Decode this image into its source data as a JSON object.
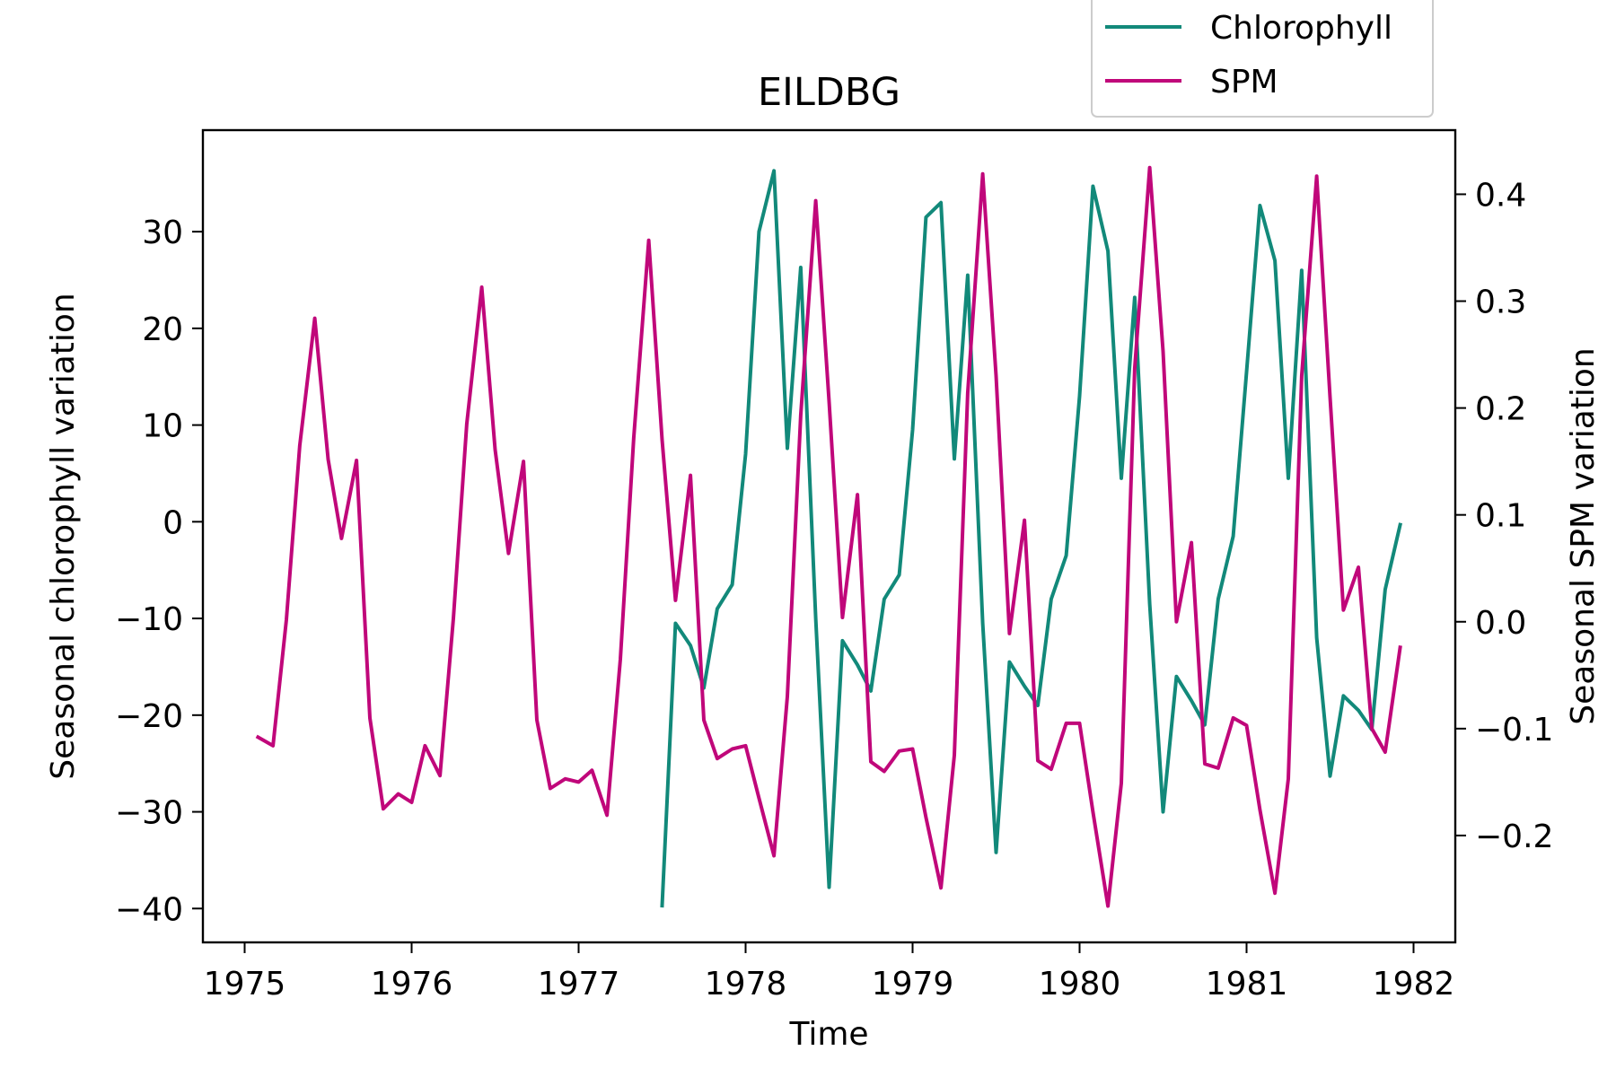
{
  "chart_data": {
    "type": "line",
    "title": "EILDBG",
    "xlabel": "Time",
    "ylabel": "Seasonal chlorophyll variation",
    "y2label": "Seasonal SPM variation",
    "xlim": [
      1974.75,
      1982.25
    ],
    "ylim": [
      -43.5,
      40.5
    ],
    "y2lim": [
      -0.3,
      0.46
    ],
    "x_ticks": [
      1975,
      1976,
      1977,
      1978,
      1979,
      1980,
      1981,
      1982
    ],
    "x_tick_labels": [
      "1975",
      "1976",
      "1977",
      "1978",
      "1979",
      "1980",
      "1981",
      "1982"
    ],
    "y_ticks": [
      -40,
      -30,
      -20,
      -10,
      0,
      10,
      20,
      30
    ],
    "y_tick_labels": [
      "−40",
      "−30",
      "−20",
      "−10",
      "0",
      "10",
      "20",
      "30"
    ],
    "y2_ticks": [
      -0.2,
      -0.1,
      0.0,
      0.1,
      0.2,
      0.3,
      0.4
    ],
    "y2_tick_labels": [
      "−0.2",
      "−0.1",
      "0.0",
      "0.1",
      "0.2",
      "0.3",
      "0.4"
    ],
    "grid": false,
    "legend_position": "top-right",
    "series": [
      {
        "name": "Chlorophyll",
        "axis": "left",
        "color": "#12897a",
        "x": [
          1977.5,
          1977.58,
          1977.67,
          1977.75,
          1977.83,
          1977.92,
          1978.0,
          1978.08,
          1978.17,
          1978.25,
          1978.33,
          1978.42,
          1978.5,
          1978.58,
          1978.67,
          1978.75,
          1978.83,
          1978.92,
          1979.0,
          1979.08,
          1979.17,
          1979.25,
          1979.33,
          1979.42,
          1979.5,
          1979.58,
          1979.67,
          1979.75,
          1979.83,
          1979.92,
          1980.0,
          1980.08,
          1980.17,
          1980.25,
          1980.33,
          1980.42,
          1980.5,
          1980.58,
          1980.67,
          1980.75,
          1980.83,
          1980.92,
          1981.0,
          1981.08,
          1981.17,
          1981.25,
          1981.33,
          1981.42,
          1981.5,
          1981.58,
          1981.67,
          1981.75,
          1981.83,
          1981.92
        ],
        "y": [
          -39.7,
          -10.5,
          -12.8,
          -17.2,
          -9.0,
          -6.5,
          7.0,
          30.0,
          36.3,
          7.6,
          26.3,
          -10.0,
          -37.8,
          -12.3,
          -14.8,
          -17.5,
          -8.0,
          -5.5,
          9.5,
          31.5,
          33.0,
          6.5,
          25.5,
          -10.5,
          -34.2,
          -14.5,
          -17.0,
          -19.0,
          -8.0,
          -3.5,
          13.0,
          34.7,
          28.0,
          4.5,
          23.2,
          -8.5,
          -30.0,
          -16.0,
          -18.5,
          -21.0,
          -8.0,
          -1.5,
          15.5,
          32.7,
          27.0,
          4.5,
          26.0,
          -12.0,
          -26.3,
          -18.0,
          -19.5,
          -21.5,
          -7.0,
          -0.3
        ]
      },
      {
        "name": "SPM",
        "axis": "right",
        "color": "#c0077a",
        "x": [
          1975.08,
          1975.17,
          1975.25,
          1975.33,
          1975.42,
          1975.5,
          1975.58,
          1975.67,
          1975.75,
          1975.83,
          1975.92,
          1976.0,
          1976.08,
          1976.17,
          1976.25,
          1976.33,
          1976.42,
          1976.5,
          1976.58,
          1976.67,
          1976.75,
          1976.83,
          1976.92,
          1977.0,
          1977.08,
          1977.17,
          1977.25,
          1977.33,
          1977.42,
          1977.5,
          1977.58,
          1977.67,
          1977.75,
          1977.83,
          1977.92,
          1978.0,
          1978.08,
          1978.17,
          1978.25,
          1978.33,
          1978.42,
          1978.5,
          1978.58,
          1978.67,
          1978.75,
          1978.83,
          1978.92,
          1979.0,
          1979.08,
          1979.17,
          1979.25,
          1979.33,
          1979.42,
          1979.5,
          1979.58,
          1979.67,
          1979.75,
          1979.83,
          1979.92,
          1980.0,
          1980.08,
          1980.17,
          1980.25,
          1980.33,
          1980.42,
          1980.5,
          1980.58,
          1980.67,
          1980.75,
          1980.83,
          1980.92,
          1981.0,
          1981.08,
          1981.17,
          1981.25,
          1981.33,
          1981.42,
          1981.5,
          1981.58,
          1981.67,
          1981.75,
          1981.83,
          1981.92
        ],
        "y": [
          -0.108,
          -0.116,
          0.002,
          0.165,
          0.284,
          0.152,
          0.078,
          0.151,
          -0.09,
          -0.175,
          -0.161,
          -0.169,
          -0.116,
          -0.144,
          0.003,
          0.185,
          0.313,
          0.161,
          0.064,
          0.15,
          -0.092,
          -0.156,
          -0.147,
          -0.15,
          -0.139,
          -0.181,
          -0.035,
          0.172,
          0.357,
          0.17,
          0.02,
          0.137,
          -0.092,
          -0.128,
          -0.119,
          -0.116,
          -0.165,
          -0.219,
          -0.07,
          0.193,
          0.394,
          0.206,
          0.004,
          0.119,
          -0.131,
          -0.14,
          -0.121,
          -0.119,
          -0.183,
          -0.249,
          -0.125,
          0.214,
          0.419,
          0.23,
          -0.011,
          0.095,
          -0.13,
          -0.138,
          -0.095,
          -0.095,
          -0.178,
          -0.266,
          -0.151,
          0.237,
          0.425,
          0.253,
          0.0,
          0.074,
          -0.133,
          -0.137,
          -0.09,
          -0.097,
          -0.176,
          -0.254,
          -0.147,
          0.23,
          0.417,
          0.21,
          0.011,
          0.051,
          -0.1,
          -0.122,
          -0.024
        ]
      }
    ]
  }
}
